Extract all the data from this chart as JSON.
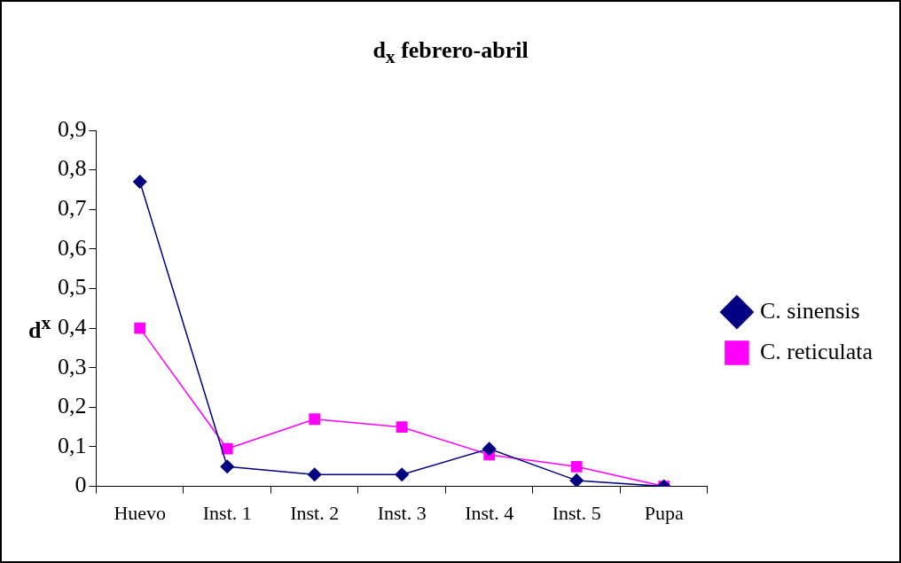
{
  "chart_data": {
    "type": "line",
    "title": "d$_{x}$ febrero-abril",
    "ylabel": "d$^{x}$",
    "categories": [
      "Huevo",
      "Inst. 1",
      "Inst. 2",
      "Inst. 3",
      "Inst. 4",
      "Inst. 5",
      "Pupa"
    ],
    "series": [
      {
        "name": "C. sinensis",
        "color": "#000080",
        "marker": "diamond",
        "values": [
          0.77,
          0.05,
          0.03,
          0.03,
          0.095,
          0.015,
          0
        ]
      },
      {
        "name": "C. reticulata",
        "color": "#ff00ff",
        "marker": "square",
        "values": [
          0.4,
          0.095,
          0.17,
          0.15,
          0.08,
          0.05,
          0
        ]
      }
    ],
    "ylim": [
      0,
      0.9
    ],
    "yticks": [
      0,
      {
        "value": 0.1,
        "label": "0,1"
      },
      {
        "value": 0.2,
        "label": "0,2"
      },
      {
        "value": 0.3,
        "label": "0,3"
      },
      {
        "value": 0.4,
        "label": "0,4"
      },
      {
        "value": 0.5,
        "label": "0,5"
      },
      {
        "value": 0.6,
        "label": "0,6"
      },
      {
        "value": 0.7,
        "label": "0,7"
      },
      {
        "value": 0.8,
        "label": "0,8"
      },
      {
        "value": 0.9,
        "label": "0,9"
      }
    ],
    "grid": false,
    "legend": "right",
    "line_style": "solid"
  }
}
